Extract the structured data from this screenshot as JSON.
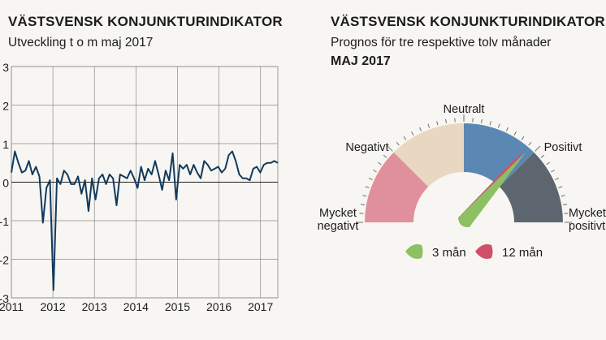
{
  "left_panel": {
    "title": "VÄSTSVENSK KONJUNKTURINDIKATOR",
    "subtitle": "Utveckling t o m maj 2017"
  },
  "right_panel": {
    "title": "VÄSTSVENSK KONJUNKTURINDIKATOR",
    "subtitle": "Prognos för tre respektive tolv månader",
    "period": "MAJ 2017"
  },
  "colors": {
    "line": "#123a5c",
    "grid": "#8a8a8a",
    "mycket_negativt": "#e0909c",
    "negativt": "#e8d8c2",
    "neutralt": "#5b88b2",
    "positivt": "#5b88b2",
    "mycket_positivt": "#5d666e",
    "needle_3man": "#8cc063",
    "needle_12man": "#d0506a",
    "background": "#f7f6f2"
  },
  "chart_data": [
    {
      "type": "line",
      "title": "VÄSTSVENSK KONJUNKTURINDIKATOR",
      "subtitle": "Utveckling t o m maj 2017",
      "xlabel": "",
      "ylabel": "",
      "ylim": [
        -3,
        3
      ],
      "y_ticks": [
        "3",
        "2",
        "1",
        "0",
        "-1",
        "-2",
        "-3"
      ],
      "x_ticks": [
        "2011",
        "2012",
        "2013",
        "2014",
        "2015",
        "2016",
        "2017"
      ],
      "x_start": "2011-01",
      "x_end": "2017-05",
      "grid": true,
      "series": [
        {
          "values": [
            0.25,
            0.8,
            0.5,
            0.25,
            0.3,
            0.55,
            0.2,
            0.4,
            0.15,
            -1.05,
            -0.15,
            0.05,
            -2.8,
            0.1,
            -0.05,
            0.3,
            0.2,
            -0.05,
            -0.05,
            0.15,
            -0.3,
            0.05,
            -0.75,
            0.1,
            -0.45,
            0.1,
            0.2,
            -0.05,
            0.2,
            0.1,
            -0.6,
            0.2,
            0.15,
            0.1,
            0.3,
            0.1,
            -0.15,
            0.4,
            0.05,
            0.35,
            0.2,
            0.55,
            0.2,
            -0.2,
            0.3,
            0.05,
            0.75,
            -0.45,
            0.45,
            0.35,
            0.45,
            0.2,
            0.45,
            0.25,
            0.1,
            0.55,
            0.45,
            0.3,
            0.35,
            0.4,
            0.25,
            0.35,
            0.7,
            0.8,
            0.55,
            0.2,
            0.1,
            0.1,
            0.05,
            0.35,
            0.4,
            0.25,
            0.45,
            0.5,
            0.5,
            0.55,
            0.5
          ]
        }
      ]
    },
    {
      "type": "gauge",
      "title": "VÄSTSVENSK KONJUNKTURINDIKATOR",
      "subtitle": "Prognos för tre respektive tolv månader",
      "period": "MAJ 2017",
      "categories": [
        "Mycket negativt",
        "Negativt",
        "Neutralt",
        "Positivt",
        "Mycket positivt"
      ],
      "series": [
        {
          "name": "3 mån",
          "value": 0.73
        },
        {
          "name": "12 mån",
          "value": 0.72
        }
      ]
    }
  ]
}
